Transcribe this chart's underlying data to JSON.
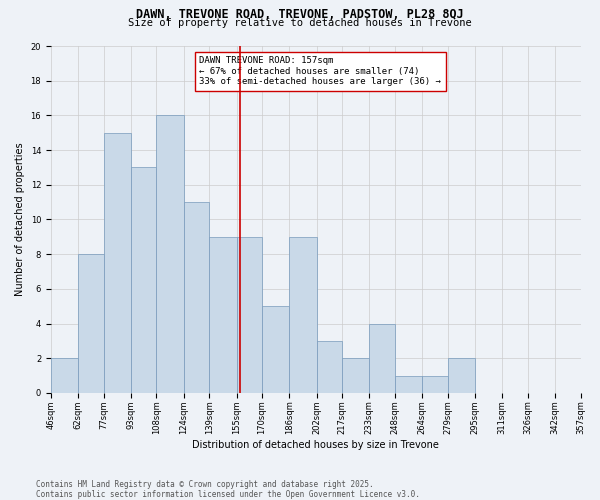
{
  "title": "DAWN, TREVONE ROAD, TREVONE, PADSTOW, PL28 8QJ",
  "subtitle": "Size of property relative to detached houses in Trevone",
  "xlabel": "Distribution of detached houses by size in Trevone",
  "ylabel": "Number of detached properties",
  "bin_edges": [
    46,
    62,
    77,
    93,
    108,
    124,
    139,
    155,
    170,
    186,
    202,
    217,
    233,
    248,
    264,
    279,
    295,
    311,
    326,
    342,
    357
  ],
  "bin_labels": [
    "46sqm",
    "62sqm",
    "77sqm",
    "93sqm",
    "108sqm",
    "124sqm",
    "139sqm",
    "155sqm",
    "170sqm",
    "186sqm",
    "202sqm",
    "217sqm",
    "233sqm",
    "248sqm",
    "264sqm",
    "279sqm",
    "295sqm",
    "311sqm",
    "326sqm",
    "342sqm",
    "357sqm"
  ],
  "counts": [
    2,
    8,
    15,
    13,
    16,
    11,
    9,
    9,
    5,
    9,
    3,
    2,
    4,
    1,
    1,
    2,
    0,
    0,
    0,
    0
  ],
  "bar_color": "#c9d9e8",
  "bar_edge_color": "#7799bb",
  "vline_x": 157,
  "vline_color": "#cc0000",
  "annotation_text": "DAWN TREVONE ROAD: 157sqm\n← 67% of detached houses are smaller (74)\n33% of semi-detached houses are larger (36) →",
  "annotation_box_color": "#ffffff",
  "annotation_box_edge": "#cc0000",
  "ylim": [
    0,
    20
  ],
  "yticks": [
    0,
    2,
    4,
    6,
    8,
    10,
    12,
    14,
    16,
    18,
    20
  ],
  "grid_color": "#cccccc",
  "background_color": "#eef2f7",
  "footer_text": "Contains HM Land Registry data © Crown copyright and database right 2025.\nContains public sector information licensed under the Open Government Licence v3.0.",
  "title_fontsize": 8.5,
  "subtitle_fontsize": 7.5,
  "axis_label_fontsize": 7,
  "tick_fontsize": 6,
  "annotation_fontsize": 6.5,
  "footer_fontsize": 5.5,
  "ylabel_fontsize": 7
}
